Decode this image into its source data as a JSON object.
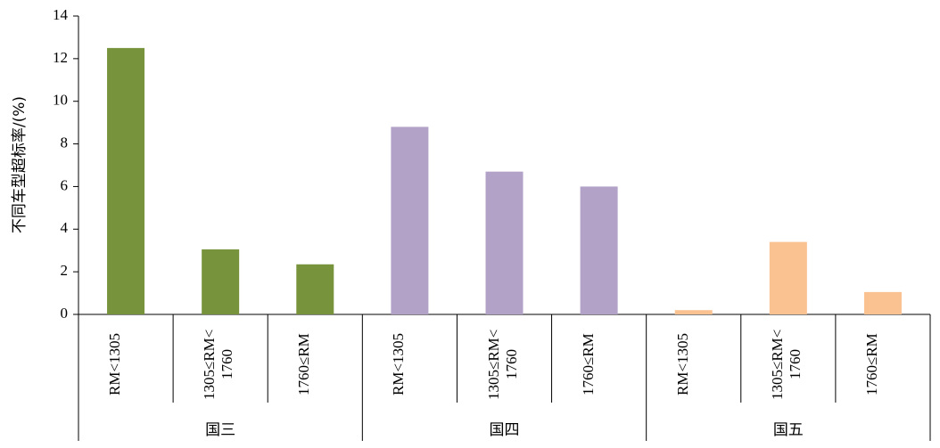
{
  "chart_data": {
    "type": "bar",
    "y_label": "不同车型超标率/(%)",
    "ylim": [
      0,
      14
    ],
    "yticks": [
      0,
      2,
      4,
      6,
      8,
      10,
      12,
      14
    ],
    "groups": [
      {
        "name": "国三",
        "color": "#77933c",
        "categories": [
          "RM<1305",
          "1305≤RM< 1760",
          "1760≤RM"
        ],
        "values": [
          12.5,
          3.05,
          2.35
        ]
      },
      {
        "name": "国四",
        "color": "#b3a2c7",
        "categories": [
          "RM<1305",
          "1305≤RM< 1760",
          "1760≤RM"
        ],
        "values": [
          8.8,
          6.7,
          6.0
        ]
      },
      {
        "name": "国五",
        "color": "#fac191",
        "categories": [
          "RM<1305",
          "1305≤RM< 1760",
          "1760≤RM"
        ],
        "values": [
          0.2,
          3.4,
          1.05
        ]
      }
    ]
  }
}
